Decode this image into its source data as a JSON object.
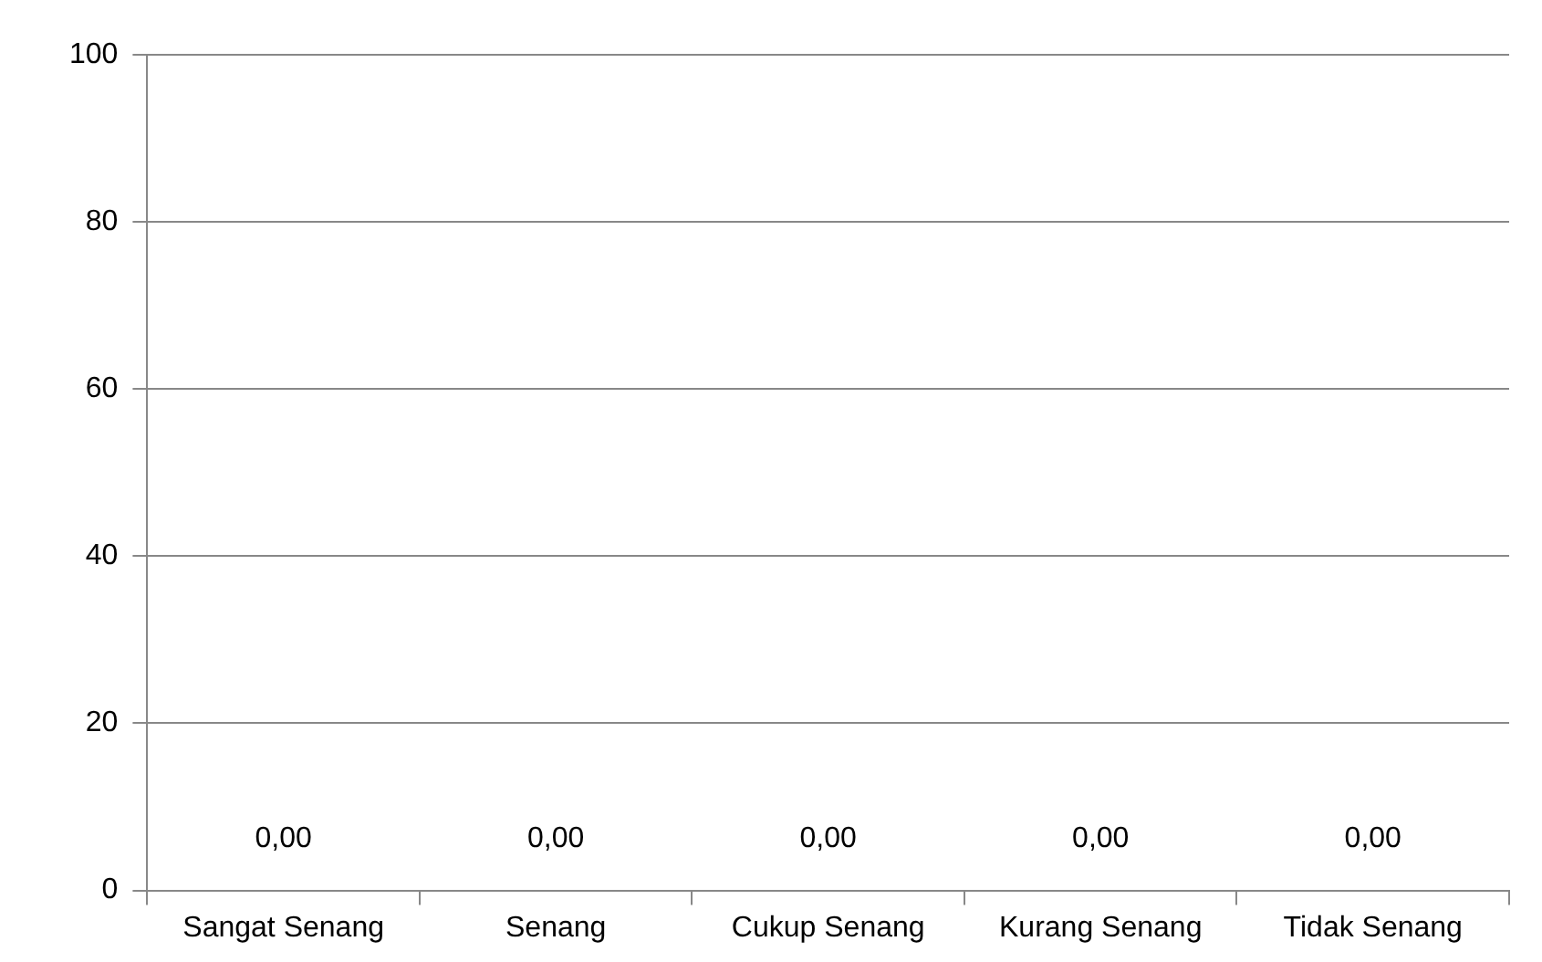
{
  "chart_data": {
    "type": "bar",
    "categories": [
      "Sangat Senang",
      "Senang",
      "Cukup Senang",
      "Kurang Senang",
      "Tidak Senang"
    ],
    "values": [
      0,
      0,
      0,
      0,
      0
    ],
    "value_labels": [
      "0,00",
      "0,00",
      "0,00",
      "0,00",
      "0,00"
    ],
    "ylim": [
      0,
      100
    ],
    "yticks": [
      0,
      20,
      40,
      60,
      80,
      100
    ],
    "grid": "y",
    "legend": false
  }
}
